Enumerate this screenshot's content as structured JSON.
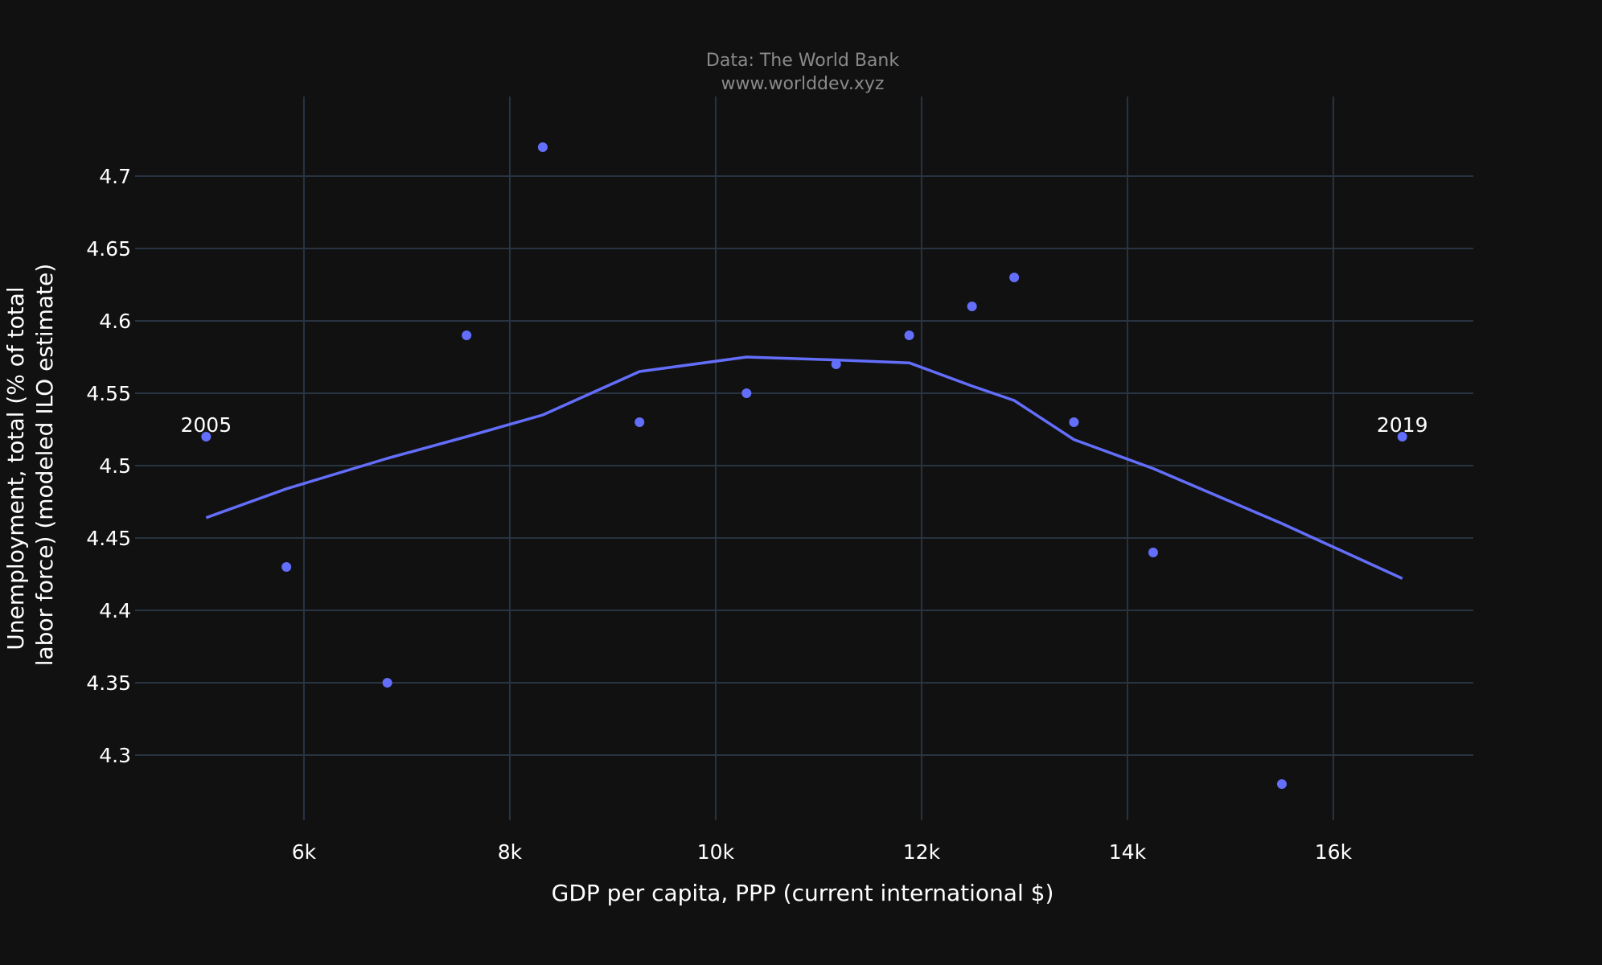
{
  "header": {
    "title_line1": "Data: The World Bank",
    "title_line2": "www.worlddev.xyz"
  },
  "colors": {
    "background": "#111111",
    "grid": "#283442",
    "series": "#636efa",
    "text": "#ffffff",
    "title": "#8a8a8a"
  },
  "chart_data": {
    "type": "scatter",
    "title": "Data: The World Bank",
    "subtitle": "www.worlddev.xyz",
    "xlabel": "GDP per capita, PPP (current international $)",
    "ylabel_lines": [
      "Unemployment, total (% of total",
      "labor force) (modeled ILO estimate)"
    ],
    "xlim": [
      4360,
      17360
    ],
    "ylim": [
      4.255,
      4.755
    ],
    "x_ticks": [
      6000,
      8000,
      10000,
      12000,
      14000,
      16000
    ],
    "x_tick_labels": [
      "6k",
      "8k",
      "10k",
      "12k",
      "14k",
      "16k"
    ],
    "y_ticks": [
      4.3,
      4.35,
      4.4,
      4.45,
      4.5,
      4.55,
      4.6,
      4.65,
      4.7
    ],
    "y_tick_labels": [
      "4.3",
      "4.35",
      "4.4",
      "4.45",
      "4.5",
      "4.55",
      "4.6",
      "4.65",
      "4.7"
    ],
    "grid": true,
    "points": [
      {
        "x": 5050,
        "y": 4.52
      },
      {
        "x": 5830,
        "y": 4.43
      },
      {
        "x": 6810,
        "y": 4.35
      },
      {
        "x": 7580,
        "y": 4.59
      },
      {
        "x": 8320,
        "y": 4.72
      },
      {
        "x": 9260,
        "y": 4.53
      },
      {
        "x": 10300,
        "y": 4.55
      },
      {
        "x": 11170,
        "y": 4.57
      },
      {
        "x": 11880,
        "y": 4.59
      },
      {
        "x": 12490,
        "y": 4.61
      },
      {
        "x": 12900,
        "y": 4.63
      },
      {
        "x": 13480,
        "y": 4.53
      },
      {
        "x": 14250,
        "y": 4.44
      },
      {
        "x": 15500,
        "y": 4.28
      },
      {
        "x": 16670,
        "y": 4.52
      }
    ],
    "trend_line": [
      {
        "x": 5050,
        "y": 4.464
      },
      {
        "x": 5830,
        "y": 4.484
      },
      {
        "x": 6810,
        "y": 4.505
      },
      {
        "x": 7580,
        "y": 4.52
      },
      {
        "x": 8320,
        "y": 4.535
      },
      {
        "x": 9260,
        "y": 4.565
      },
      {
        "x": 10300,
        "y": 4.575
      },
      {
        "x": 11170,
        "y": 4.573
      },
      {
        "x": 11880,
        "y": 4.571
      },
      {
        "x": 12490,
        "y": 4.555
      },
      {
        "x": 12900,
        "y": 4.545
      },
      {
        "x": 13480,
        "y": 4.518
      },
      {
        "x": 14250,
        "y": 4.498
      },
      {
        "x": 15500,
        "y": 4.46
      },
      {
        "x": 16670,
        "y": 4.422
      }
    ],
    "annotations": [
      {
        "text": "2005",
        "x": 5050,
        "y": 4.52
      },
      {
        "text": "2019",
        "x": 16670,
        "y": 4.52
      }
    ]
  }
}
